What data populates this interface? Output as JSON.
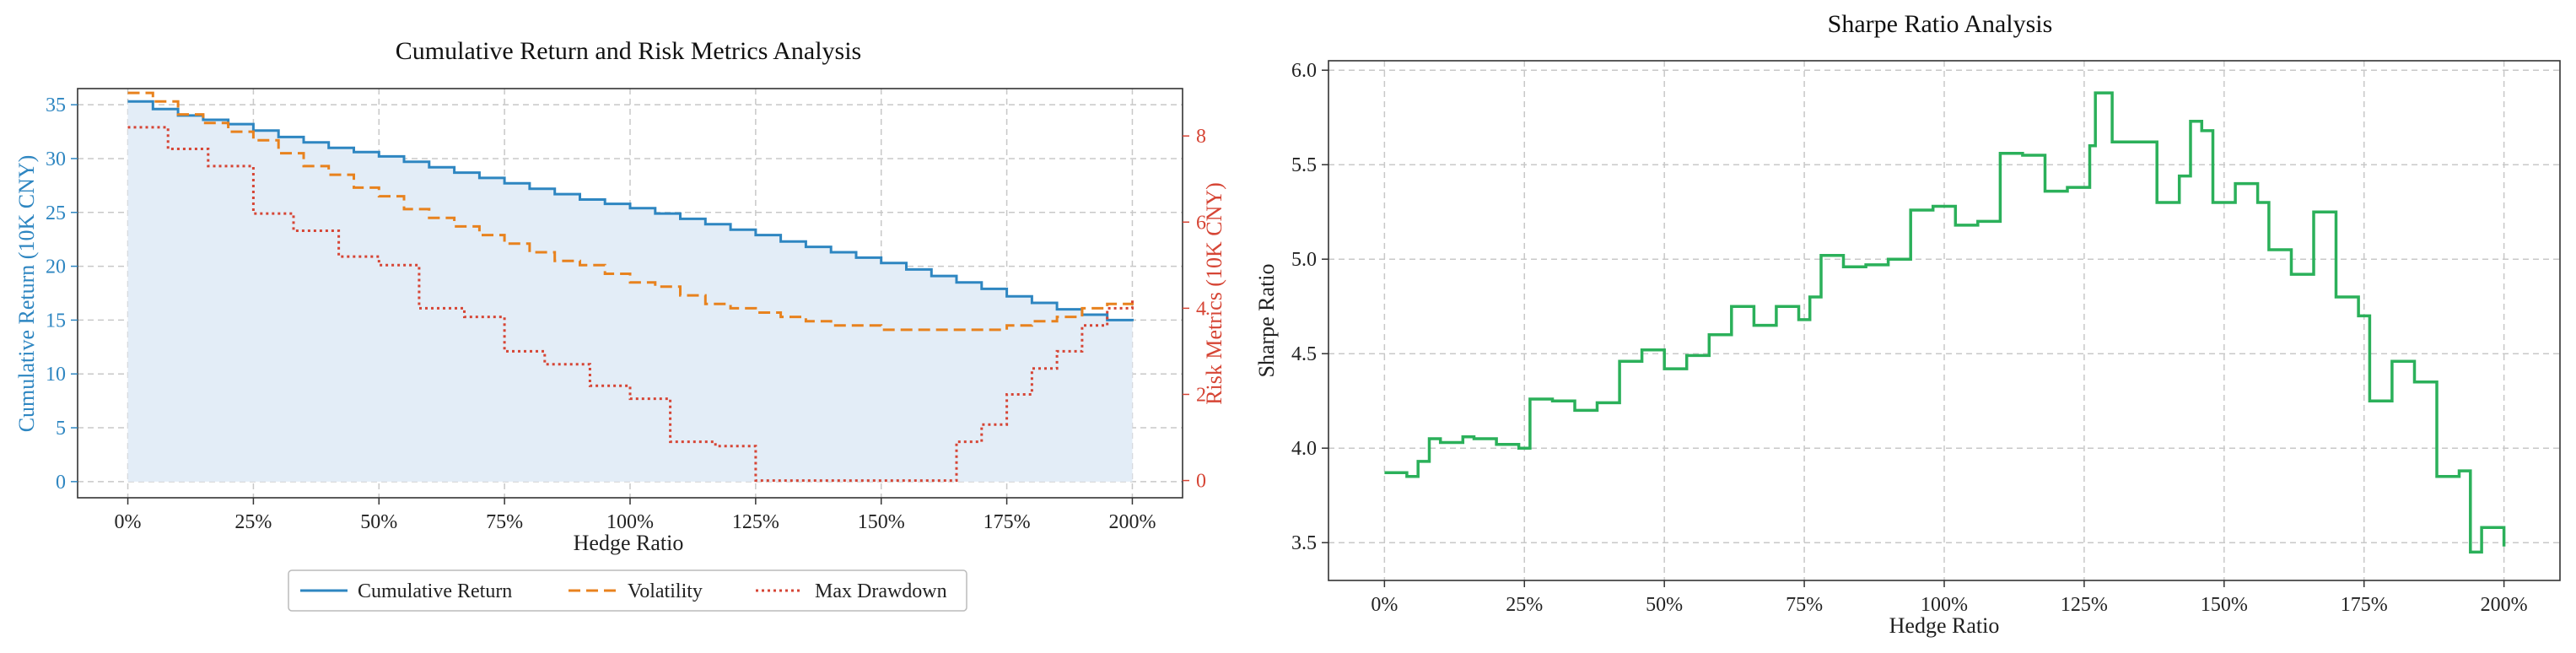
{
  "colors": {
    "cumulative": "#2e86c1",
    "volatility": "#e8821e",
    "drawdown": "#d64535",
    "sharpe": "#2bb05a",
    "fill": "#e3edf7"
  },
  "chart_data": [
    {
      "type": "line",
      "title": "Cumulative Return and Risk Metrics Analysis",
      "xlabel": "Hedge Ratio",
      "ylabel": "Cumulative Return (10K CNY)",
      "y2label": "Risk Metrics (10K CNY)",
      "xlim": [
        -0.1,
        2.1
      ],
      "ylim": [
        -1.5,
        36.5
      ],
      "y2lim": [
        -0.4,
        9.1
      ],
      "xticks": [
        0,
        0.25,
        0.5,
        0.75,
        1.0,
        1.25,
        1.5,
        1.75,
        2.0
      ],
      "xtick_labels": [
        "0%",
        "25%",
        "50%",
        "75%",
        "100%",
        "125%",
        "150%",
        "175%",
        "200%"
      ],
      "yticks": [
        0,
        5,
        10,
        15,
        20,
        25,
        30,
        35
      ],
      "ytick_labels": [
        "0",
        "5",
        "10",
        "15",
        "20",
        "25",
        "30",
        "35"
      ],
      "y2ticks": [
        0,
        2,
        4,
        6,
        8
      ],
      "y2tick_labels": [
        "0",
        "2",
        "4",
        "6",
        "8"
      ],
      "legend_position": "bottom-center",
      "series": [
        {
          "name": "Cumulative Return",
          "axis": "left",
          "style": "solid",
          "x": [
            0,
            0.05,
            0.1,
            0.15,
            0.2,
            0.25,
            0.3,
            0.35,
            0.4,
            0.45,
            0.5,
            0.55,
            0.6,
            0.65,
            0.7,
            0.75,
            0.8,
            0.85,
            0.9,
            0.95,
            1.0,
            1.05,
            1.1,
            1.15,
            1.2,
            1.25,
            1.3,
            1.35,
            1.4,
            1.45,
            1.5,
            1.55,
            1.6,
            1.65,
            1.7,
            1.75,
            1.8,
            1.85,
            1.9,
            1.95,
            2.0
          ],
          "values": [
            35.3,
            34.6,
            34.0,
            33.6,
            33.2,
            32.6,
            32.0,
            31.5,
            31.0,
            30.6,
            30.2,
            29.7,
            29.2,
            28.7,
            28.2,
            27.7,
            27.2,
            26.7,
            26.2,
            25.8,
            25.4,
            24.9,
            24.4,
            23.9,
            23.4,
            22.9,
            22.3,
            21.8,
            21.3,
            20.8,
            20.3,
            19.7,
            19.1,
            18.5,
            17.9,
            17.2,
            16.6,
            16.0,
            15.5,
            15.0,
            14.9
          ]
        },
        {
          "name": "Volatility",
          "axis": "right",
          "style": "dashed",
          "x": [
            0,
            0.05,
            0.1,
            0.15,
            0.2,
            0.25,
            0.3,
            0.35,
            0.4,
            0.45,
            0.5,
            0.55,
            0.6,
            0.65,
            0.7,
            0.75,
            0.8,
            0.85,
            0.9,
            0.95,
            1.0,
            1.05,
            1.1,
            1.15,
            1.2,
            1.25,
            1.3,
            1.35,
            1.4,
            1.45,
            1.5,
            1.55,
            1.6,
            1.65,
            1.7,
            1.75,
            1.8,
            1.85,
            1.9,
            1.95,
            2.0
          ],
          "values": [
            9.0,
            8.8,
            8.5,
            8.3,
            8.1,
            7.9,
            7.6,
            7.3,
            7.1,
            6.8,
            6.6,
            6.3,
            6.1,
            5.9,
            5.7,
            5.5,
            5.3,
            5.1,
            5.0,
            4.8,
            4.6,
            4.5,
            4.3,
            4.1,
            4.0,
            3.9,
            3.8,
            3.7,
            3.6,
            3.6,
            3.5,
            3.5,
            3.5,
            3.5,
            3.5,
            3.6,
            3.7,
            3.8,
            4.0,
            4.1,
            4.2
          ]
        },
        {
          "name": "Max Drawdown",
          "axis": "right",
          "style": "dotted",
          "x": [
            0,
            0.08,
            0.16,
            0.25,
            0.33,
            0.42,
            0.5,
            0.58,
            0.67,
            0.75,
            0.83,
            0.92,
            1.0,
            1.08,
            1.17,
            1.25,
            1.33,
            1.42,
            1.5,
            1.58,
            1.65,
            1.7,
            1.75,
            1.8,
            1.85,
            1.9,
            1.95,
            2.0
          ],
          "values": [
            8.2,
            7.7,
            7.3,
            6.2,
            5.8,
            5.2,
            5.0,
            4.0,
            3.8,
            3.0,
            2.7,
            2.2,
            1.9,
            0.9,
            0.8,
            0.0,
            0.0,
            0.0,
            0.0,
            0.0,
            0.9,
            1.3,
            2.0,
            2.6,
            3.0,
            3.6,
            4.0,
            4.2
          ]
        }
      ]
    },
    {
      "type": "line",
      "title": "Sharpe Ratio Analysis",
      "xlabel": "Hedge Ratio",
      "ylabel": "Sharpe Ratio",
      "xlim": [
        -0.1,
        2.1
      ],
      "ylim": [
        3.3,
        6.05
      ],
      "xticks": [
        0,
        0.25,
        0.5,
        0.75,
        1.0,
        1.25,
        1.5,
        1.75,
        2.0
      ],
      "xtick_labels": [
        "0%",
        "25%",
        "50%",
        "75%",
        "100%",
        "125%",
        "150%",
        "175%",
        "200%"
      ],
      "yticks": [
        3.5,
        4.0,
        4.5,
        5.0,
        5.5,
        6.0
      ],
      "ytick_labels": [
        "3.5",
        "4.0",
        "4.5",
        "5.0",
        "5.5",
        "6.0"
      ],
      "series": [
        {
          "name": "Sharpe Ratio",
          "x": [
            0,
            0.04,
            0.06,
            0.08,
            0.1,
            0.14,
            0.16,
            0.2,
            0.24,
            0.26,
            0.3,
            0.34,
            0.38,
            0.42,
            0.46,
            0.5,
            0.54,
            0.58,
            0.62,
            0.66,
            0.7,
            0.74,
            0.76,
            0.78,
            0.82,
            0.86,
            0.9,
            0.94,
            0.98,
            1.02,
            1.06,
            1.1,
            1.14,
            1.18,
            1.22,
            1.26,
            1.27,
            1.3,
            1.34,
            1.38,
            1.42,
            1.44,
            1.46,
            1.48,
            1.52,
            1.56,
            1.58,
            1.62,
            1.66,
            1.7,
            1.74,
            1.76,
            1.8,
            1.84,
            1.88,
            1.92,
            1.94,
            1.96,
            2.0
          ],
          "values": [
            3.87,
            3.85,
            3.93,
            4.05,
            4.03,
            4.06,
            4.05,
            4.02,
            4.0,
            4.26,
            4.25,
            4.2,
            4.24,
            4.46,
            4.52,
            4.42,
            4.49,
            4.6,
            4.75,
            4.65,
            4.75,
            4.68,
            4.8,
            5.02,
            4.96,
            4.97,
            5.0,
            5.26,
            5.28,
            5.18,
            5.2,
            5.56,
            5.55,
            5.36,
            5.38,
            5.6,
            5.88,
            5.62,
            5.62,
            5.3,
            5.44,
            5.73,
            5.68,
            5.3,
            5.4,
            5.3,
            5.05,
            4.92,
            5.25,
            4.8,
            4.7,
            4.25,
            4.46,
            4.35,
            3.85,
            3.88,
            3.45,
            3.58,
            3.48
          ]
        }
      ]
    }
  ],
  "legend": {
    "items": [
      "Cumulative Return",
      "Volatility",
      "Max Drawdown"
    ]
  }
}
